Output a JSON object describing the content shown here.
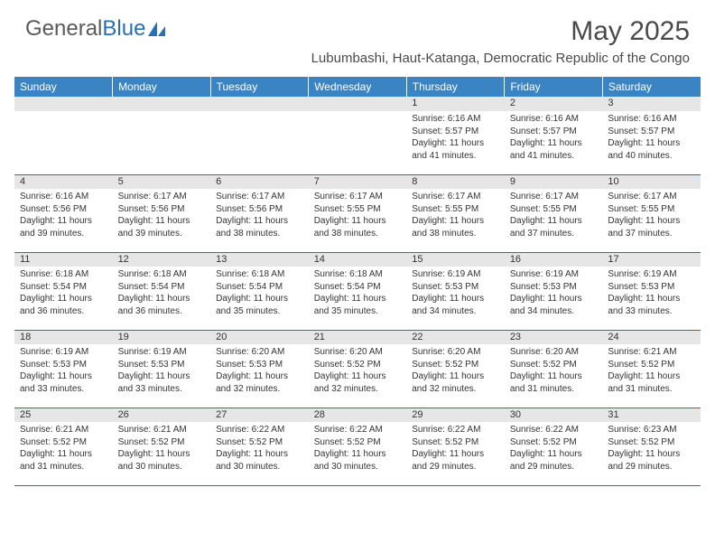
{
  "logo": {
    "part1": "General",
    "part2": "Blue"
  },
  "title": "May 2025",
  "location": "Lubumbashi, Haut-Katanga, Democratic Republic of the Congo",
  "colors": {
    "header_bg": "#3b84c4",
    "header_text": "#ffffff",
    "daynum_bg": "#e6e6e6",
    "rule": "#2a6fb5",
    "logo_blue": "#2a6fb5",
    "text": "#333333"
  },
  "day_headers": [
    "Sunday",
    "Monday",
    "Tuesday",
    "Wednesday",
    "Thursday",
    "Friday",
    "Saturday"
  ],
  "weeks": [
    [
      null,
      null,
      null,
      null,
      {
        "n": "1",
        "sr": "6:16 AM",
        "ss": "5:57 PM",
        "dl": "11 hours and 41 minutes."
      },
      {
        "n": "2",
        "sr": "6:16 AM",
        "ss": "5:57 PM",
        "dl": "11 hours and 41 minutes."
      },
      {
        "n": "3",
        "sr": "6:16 AM",
        "ss": "5:57 PM",
        "dl": "11 hours and 40 minutes."
      }
    ],
    [
      {
        "n": "4",
        "sr": "6:16 AM",
        "ss": "5:56 PM",
        "dl": "11 hours and 39 minutes."
      },
      {
        "n": "5",
        "sr": "6:17 AM",
        "ss": "5:56 PM",
        "dl": "11 hours and 39 minutes."
      },
      {
        "n": "6",
        "sr": "6:17 AM",
        "ss": "5:56 PM",
        "dl": "11 hours and 38 minutes."
      },
      {
        "n": "7",
        "sr": "6:17 AM",
        "ss": "5:55 PM",
        "dl": "11 hours and 38 minutes."
      },
      {
        "n": "8",
        "sr": "6:17 AM",
        "ss": "5:55 PM",
        "dl": "11 hours and 38 minutes."
      },
      {
        "n": "9",
        "sr": "6:17 AM",
        "ss": "5:55 PM",
        "dl": "11 hours and 37 minutes."
      },
      {
        "n": "10",
        "sr": "6:17 AM",
        "ss": "5:55 PM",
        "dl": "11 hours and 37 minutes."
      }
    ],
    [
      {
        "n": "11",
        "sr": "6:18 AM",
        "ss": "5:54 PM",
        "dl": "11 hours and 36 minutes."
      },
      {
        "n": "12",
        "sr": "6:18 AM",
        "ss": "5:54 PM",
        "dl": "11 hours and 36 minutes."
      },
      {
        "n": "13",
        "sr": "6:18 AM",
        "ss": "5:54 PM",
        "dl": "11 hours and 35 minutes."
      },
      {
        "n": "14",
        "sr": "6:18 AM",
        "ss": "5:54 PM",
        "dl": "11 hours and 35 minutes."
      },
      {
        "n": "15",
        "sr": "6:19 AM",
        "ss": "5:53 PM",
        "dl": "11 hours and 34 minutes."
      },
      {
        "n": "16",
        "sr": "6:19 AM",
        "ss": "5:53 PM",
        "dl": "11 hours and 34 minutes."
      },
      {
        "n": "17",
        "sr": "6:19 AM",
        "ss": "5:53 PM",
        "dl": "11 hours and 33 minutes."
      }
    ],
    [
      {
        "n": "18",
        "sr": "6:19 AM",
        "ss": "5:53 PM",
        "dl": "11 hours and 33 minutes."
      },
      {
        "n": "19",
        "sr": "6:19 AM",
        "ss": "5:53 PM",
        "dl": "11 hours and 33 minutes."
      },
      {
        "n": "20",
        "sr": "6:20 AM",
        "ss": "5:53 PM",
        "dl": "11 hours and 32 minutes."
      },
      {
        "n": "21",
        "sr": "6:20 AM",
        "ss": "5:52 PM",
        "dl": "11 hours and 32 minutes."
      },
      {
        "n": "22",
        "sr": "6:20 AM",
        "ss": "5:52 PM",
        "dl": "11 hours and 32 minutes."
      },
      {
        "n": "23",
        "sr": "6:20 AM",
        "ss": "5:52 PM",
        "dl": "11 hours and 31 minutes."
      },
      {
        "n": "24",
        "sr": "6:21 AM",
        "ss": "5:52 PM",
        "dl": "11 hours and 31 minutes."
      }
    ],
    [
      {
        "n": "25",
        "sr": "6:21 AM",
        "ss": "5:52 PM",
        "dl": "11 hours and 31 minutes."
      },
      {
        "n": "26",
        "sr": "6:21 AM",
        "ss": "5:52 PM",
        "dl": "11 hours and 30 minutes."
      },
      {
        "n": "27",
        "sr": "6:22 AM",
        "ss": "5:52 PM",
        "dl": "11 hours and 30 minutes."
      },
      {
        "n": "28",
        "sr": "6:22 AM",
        "ss": "5:52 PM",
        "dl": "11 hours and 30 minutes."
      },
      {
        "n": "29",
        "sr": "6:22 AM",
        "ss": "5:52 PM",
        "dl": "11 hours and 29 minutes."
      },
      {
        "n": "30",
        "sr": "6:22 AM",
        "ss": "5:52 PM",
        "dl": "11 hours and 29 minutes."
      },
      {
        "n": "31",
        "sr": "6:23 AM",
        "ss": "5:52 PM",
        "dl": "11 hours and 29 minutes."
      }
    ]
  ],
  "labels": {
    "sunrise": "Sunrise: ",
    "sunset": "Sunset: ",
    "daylight": "Daylight: "
  }
}
